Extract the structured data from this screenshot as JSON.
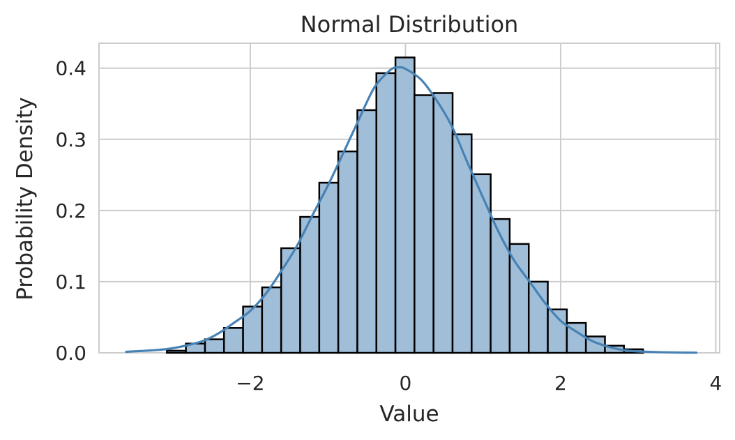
{
  "chart_data": {
    "type": "bar",
    "title": "Normal Distribution",
    "xlabel": "Value",
    "ylabel": "Probability Density",
    "xlim": [
      -3.95,
      4.05
    ],
    "ylim": [
      0,
      0.435
    ],
    "xticks": [
      -2,
      0,
      2,
      4
    ],
    "xtick_labels": [
      "−2",
      "0",
      "2",
      "4"
    ],
    "yticks": [
      0.0,
      0.1,
      0.2,
      0.3,
      0.4
    ],
    "ytick_labels": [
      "0.0",
      "0.1",
      "0.2",
      "0.3",
      "0.4"
    ],
    "grid": true,
    "colors": {
      "bar_fill": "#a1bed9",
      "bar_edge": "#000000",
      "kde_line": "#4682b4",
      "grid": "#cccccc"
    },
    "bin_width": 0.2455,
    "bins": [
      {
        "start": -3.32,
        "density": 0.0
      },
      {
        "start": -3.075,
        "density": 0.003
      },
      {
        "start": -2.83,
        "density": 0.013
      },
      {
        "start": -2.584,
        "density": 0.019
      },
      {
        "start": -2.339,
        "density": 0.035
      },
      {
        "start": -2.093,
        "density": 0.065
      },
      {
        "start": -1.848,
        "density": 0.092
      },
      {
        "start": -1.602,
        "density": 0.147
      },
      {
        "start": -1.357,
        "density": 0.191
      },
      {
        "start": -1.111,
        "density": 0.239
      },
      {
        "start": -0.866,
        "density": 0.283
      },
      {
        "start": -0.62,
        "density": 0.341
      },
      {
        "start": -0.375,
        "density": 0.393
      },
      {
        "start": -0.129,
        "density": 0.415
      },
      {
        "start": 0.116,
        "density": 0.362
      },
      {
        "start": 0.362,
        "density": 0.365
      },
      {
        "start": 0.607,
        "density": 0.307
      },
      {
        "start": 0.853,
        "density": 0.251
      },
      {
        "start": 1.098,
        "density": 0.188
      },
      {
        "start": 1.344,
        "density": 0.153
      },
      {
        "start": 1.589,
        "density": 0.1
      },
      {
        "start": 1.835,
        "density": 0.061
      },
      {
        "start": 2.08,
        "density": 0.042
      },
      {
        "start": 2.326,
        "density": 0.023
      },
      {
        "start": 2.571,
        "density": 0.01
      },
      {
        "start": 2.817,
        "density": 0.005
      },
      {
        "start": 3.062,
        "density": 0.0
      },
      {
        "start": 3.308,
        "density": 0.0
      }
    ],
    "kde": {
      "name": "",
      "x": [
        -3.6,
        -3.2,
        -3.0,
        -2.8,
        -2.6,
        -2.4,
        -2.2,
        -2.0,
        -1.8,
        -1.6,
        -1.4,
        -1.2,
        -1.0,
        -0.8,
        -0.6,
        -0.4,
        -0.2,
        -0.1,
        0.0,
        0.2,
        0.4,
        0.6,
        0.8,
        1.0,
        1.2,
        1.4,
        1.6,
        1.8,
        2.0,
        2.2,
        2.4,
        2.6,
        2.8,
        3.0,
        3.4,
        3.75
      ],
      "y": [
        0.0015,
        0.004,
        0.0065,
        0.011,
        0.017,
        0.028,
        0.043,
        0.059,
        0.083,
        0.115,
        0.15,
        0.193,
        0.235,
        0.281,
        0.328,
        0.373,
        0.397,
        0.401,
        0.399,
        0.384,
        0.355,
        0.318,
        0.267,
        0.218,
        0.17,
        0.13,
        0.1,
        0.07,
        0.045,
        0.03,
        0.017,
        0.009,
        0.004,
        0.002,
        0.0006,
        0.0002
      ]
    }
  }
}
